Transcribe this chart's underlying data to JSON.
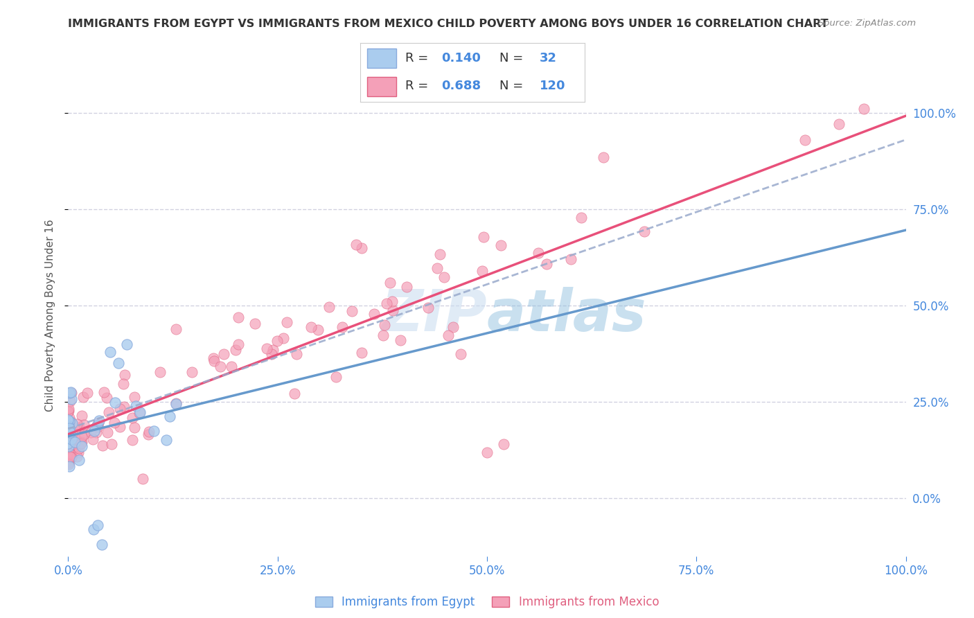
{
  "title": "IMMIGRANTS FROM EGYPT VS IMMIGRANTS FROM MEXICO CHILD POVERTY AMONG BOYS UNDER 16 CORRELATION CHART",
  "source": "Source: ZipAtlas.com",
  "ylabel": "Child Poverty Among Boys Under 16",
  "egypt_R": 0.14,
  "egypt_N": 32,
  "mexico_R": 0.688,
  "mexico_N": 120,
  "egypt_dot_color": "#aaccee",
  "egypt_dot_edge": "#88aadd",
  "mexico_dot_color": "#f4a0b8",
  "mexico_dot_edge": "#e06080",
  "egypt_line_color": "#6699cc",
  "mexico_line_color": "#e8507a",
  "dashed_line_color": "#99aacc",
  "background_color": "#ffffff",
  "grid_color": "#ccccdd",
  "title_color": "#333333",
  "right_tick_color": "#4488dd",
  "watermark_color": "#c8dcf0",
  "xlim": [
    0.0,
    1.0
  ],
  "ylim": [
    -0.15,
    1.1
  ],
  "xticks": [
    0.0,
    0.25,
    0.5,
    0.75,
    1.0
  ],
  "yticks": [
    0.0,
    0.25,
    0.5,
    0.75,
    1.0
  ],
  "legend_egypt_label": "Immigrants from Egypt",
  "legend_mexico_label": "Immigrants from Mexico"
}
